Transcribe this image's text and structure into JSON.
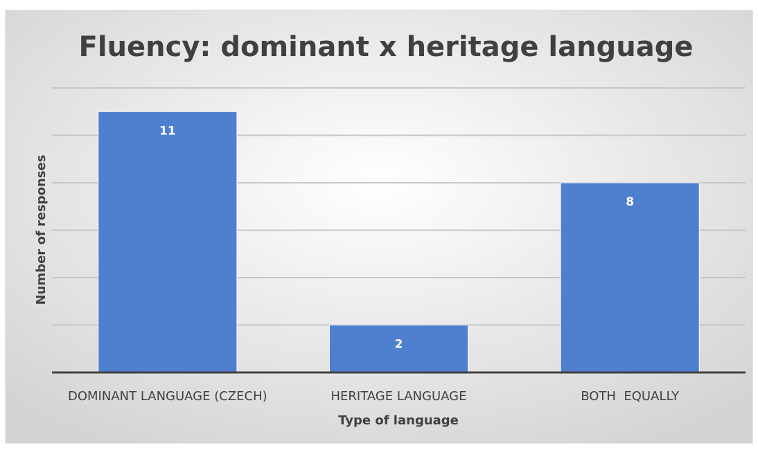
{
  "chart_data": {
    "type": "bar",
    "title": "Fluency: dominant x heritage language",
    "x_label": "Type of language",
    "y_label": "Number of responses",
    "categories": [
      "DOMINANT LANGUAGE (CZECH)",
      "HERITAGE LANGUAGE",
      "BOTH  EQUALLY"
    ],
    "values": [
      11,
      2,
      8
    ],
    "color": "#4f7fcf",
    "ylim": [
      0,
      12
    ],
    "yticks": [
      0,
      2,
      4,
      6,
      8,
      10,
      12
    ],
    "grid": true
  }
}
